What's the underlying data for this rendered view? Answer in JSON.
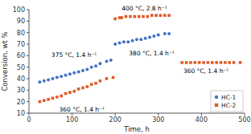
{
  "chart_data": {
    "type": "scatter",
    "xlabel": "Time, h",
    "ylabel": "Conversion, wt %",
    "xlim": [
      0,
      500
    ],
    "ylim": [
      10,
      100
    ],
    "xticks": [
      0,
      100,
      200,
      300,
      400,
      500
    ],
    "yticks": [
      10,
      20,
      30,
      40,
      50,
      60,
      70,
      80,
      90,
      100
    ],
    "grid": false,
    "legend": "lower right",
    "series": [
      {
        "name": "HC-1",
        "color": "#4472c4",
        "marker": "circle",
        "x": [
          25,
          35,
          45,
          55,
          65,
          75,
          85,
          95,
          105,
          115,
          125,
          135,
          145,
          155,
          165,
          180,
          190,
          200,
          210,
          220,
          230,
          240,
          250,
          260,
          270,
          280,
          290,
          300,
          315,
          325
        ],
        "values": [
          37,
          38,
          39,
          40,
          41,
          42,
          43,
          44,
          45,
          46,
          47,
          48,
          50,
          51,
          53,
          55,
          56,
          70,
          71,
          72,
          72,
          73,
          74,
          74,
          75,
          76,
          77,
          78,
          79,
          79
        ]
      },
      {
        "name": "HC-2",
        "color": "#e05c2a",
        "marker": "square",
        "x": [
          25,
          35,
          45,
          55,
          65,
          75,
          85,
          95,
          105,
          115,
          125,
          135,
          145,
          155,
          165,
          180,
          195,
          200,
          210,
          215,
          225,
          235,
          245,
          255,
          265,
          275,
          285,
          295,
          305,
          315,
          325,
          355,
          365,
          375,
          385,
          395,
          405,
          415,
          425,
          435,
          445,
          455,
          465,
          475,
          490
        ],
        "values": [
          20,
          21,
          22,
          23,
          24,
          25,
          27,
          28,
          29,
          31,
          32,
          33,
          35,
          36,
          38,
          40,
          41,
          92,
          93,
          93,
          94,
          94,
          94,
          94,
          94,
          94,
          95,
          95,
          95,
          95,
          95,
          54,
          54,
          54,
          54,
          54,
          54,
          54,
          54,
          54,
          54,
          54,
          54,
          54,
          54
        ]
      }
    ],
    "annotations": [
      {
        "text": "375 °C, 1.4 h⁻¹",
        "x": 52,
        "y": 58
      },
      {
        "text": "380 °C, 1.4 h⁻¹",
        "x": 232,
        "y": 65
      },
      {
        "text": "360 °C, 1.4 h⁻¹",
        "x": 70,
        "y": 16
      },
      {
        "text": "400 °C, 2.8 h⁻¹",
        "x": 215,
        "y": 98.5
      },
      {
        "text": "360 °C, 1.4 h⁻¹",
        "x": 358,
        "y": 49.5
      }
    ]
  }
}
